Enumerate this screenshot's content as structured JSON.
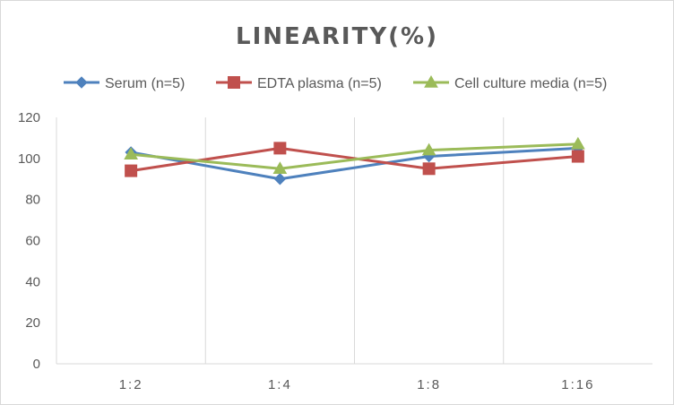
{
  "chart_data": {
    "type": "line",
    "title": "LINEARITY(%)",
    "xlabel": "",
    "ylabel": "",
    "categories": [
      "1:2",
      "1:4",
      "1:8",
      "1:16"
    ],
    "ylim": [
      0,
      120
    ],
    "yticks": [
      0,
      20,
      40,
      60,
      80,
      100,
      120
    ],
    "grid": "vertical",
    "legend": "top",
    "series": [
      {
        "name": "Serum (n=5)",
        "values": [
          103,
          90,
          101,
          105
        ],
        "color": "#4e81bd",
        "marker": "diamond"
      },
      {
        "name": "EDTA plasma (n=5)",
        "values": [
          94,
          105,
          95,
          101
        ],
        "color": "#c0504d",
        "marker": "square"
      },
      {
        "name": "Cell culture media (n=5)",
        "values": [
          102,
          95,
          104,
          107
        ],
        "color": "#9bbb59",
        "marker": "triangle"
      }
    ]
  }
}
